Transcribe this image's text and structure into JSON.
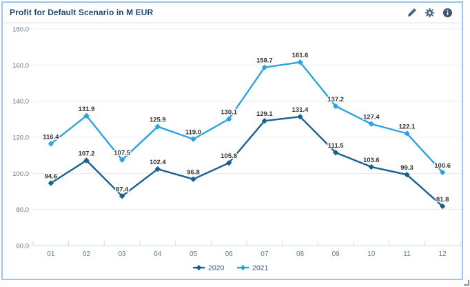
{
  "header": {
    "title": "Profit for Default Scenario in M EUR",
    "icons": [
      "edit-icon",
      "settings-icon",
      "info-icon"
    ]
  },
  "chart_data": {
    "type": "line",
    "title": "Profit for Default Scenario in M EUR",
    "unit": "M EUR",
    "categories": [
      "01",
      "02",
      "03",
      "04",
      "05",
      "06",
      "07",
      "08",
      "09",
      "10",
      "11",
      "12"
    ],
    "series": [
      {
        "name": "2020",
        "color": "#17618f",
        "values": [
          94.6,
          107.2,
          87.4,
          102.4,
          96.8,
          105.8,
          129.1,
          131.4,
          111.5,
          103.6,
          99.3,
          81.8
        ]
      },
      {
        "name": "2021",
        "color": "#2aa3e0",
        "values": [
          116.4,
          131.9,
          107.5,
          125.9,
          119.0,
          130.1,
          158.7,
          161.6,
          137.2,
          127.4,
          122.1,
          100.6
        ]
      }
    ],
    "ylim": [
      60,
      180
    ],
    "yticks": [
      180,
      160,
      140,
      120,
      100,
      80,
      60
    ],
    "ytick_labels": [
      "180.0",
      "160.0",
      "140.0",
      "120.0",
      "100.0",
      "80.0",
      "60.0"
    ],
    "grid": true,
    "data_labels": true,
    "legend_position": "bottom-center"
  },
  "colors": {
    "card_border": "#9dc3ee",
    "grid_line": "#ececec",
    "axis_line": "#ccd9e9",
    "axis_text": "#5f7a95",
    "title_text": "#1f486e",
    "icon": "#4a6682",
    "data_label": "#323232",
    "legend_text": "#3f5a75"
  }
}
